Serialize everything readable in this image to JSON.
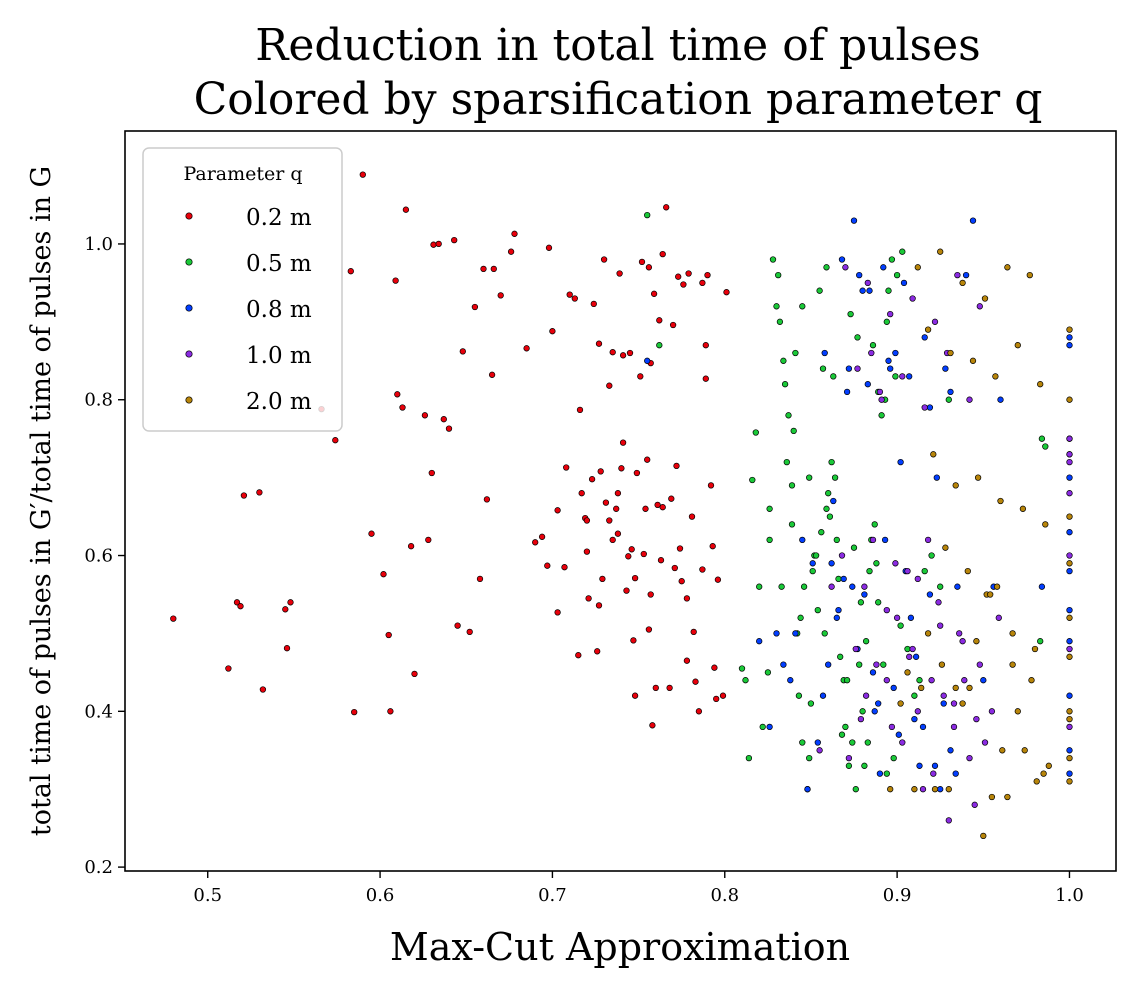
{
  "chart_data": {
    "type": "scatter",
    "title_line1": "Reduction in total time of pulses",
    "title_line2": "Colored by sparsification parameter q",
    "xlabel": "Max-Cut Approximation",
    "ylabel": "total time of pulses in G′/total time of pulses in G",
    "xlim": [
      0.452,
      1.027
    ],
    "ylim": [
      0.195,
      1.145
    ],
    "xticks": [
      0.5,
      0.6,
      0.7,
      0.8,
      0.9,
      1.0
    ],
    "xtick_labels": [
      "0.5",
      "0.6",
      "0.7",
      "0.8",
      "0.9",
      "1.0"
    ],
    "yticks": [
      0.2,
      0.4,
      0.6,
      0.8,
      1.0
    ],
    "ytick_labels": [
      "0.2",
      "0.4",
      "0.6",
      "0.8",
      "1.0"
    ],
    "legend": {
      "title": "Parameter q",
      "placement": "upper-left"
    },
    "series": [
      {
        "name": "0.2 m",
        "color": "#e8000b",
        "x": [
          0.48,
          0.512,
          0.517,
          0.519,
          0.521,
          0.53,
          0.532,
          0.545,
          0.546,
          0.548,
          0.566,
          0.574,
          0.583,
          0.585,
          0.59,
          0.595,
          0.602,
          0.605,
          0.606,
          0.609,
          0.61,
          0.613,
          0.615,
          0.618,
          0.62,
          0.626,
          0.628,
          0.63,
          0.631,
          0.634,
          0.637,
          0.64,
          0.643,
          0.645,
          0.648,
          0.652,
          0.655,
          0.658,
          0.66,
          0.662,
          0.665,
          0.666,
          0.67,
          0.676,
          0.678,
          0.685,
          0.69,
          0.694,
          0.697,
          0.7,
          0.703,
          0.707,
          0.708,
          0.71,
          0.715,
          0.716,
          0.719,
          0.72,
          0.721,
          0.723,
          0.724,
          0.726,
          0.727,
          0.729,
          0.73,
          0.731,
          0.733,
          0.735,
          0.737,
          0.738,
          0.739,
          0.74,
          0.741,
          0.743,
          0.744,
          0.746,
          0.747,
          0.748,
          0.749,
          0.751,
          0.752,
          0.753,
          0.755,
          0.756,
          0.757,
          0.758,
          0.759,
          0.761,
          0.763,
          0.764,
          0.766,
          0.768,
          0.77,
          0.771,
          0.773,
          0.774,
          0.776,
          0.778,
          0.779,
          0.781,
          0.783,
          0.785,
          0.787,
          0.789,
          0.79,
          0.792,
          0.794,
          0.796,
          0.799,
          0.801,
          0.728,
          0.741,
          0.757,
          0.769,
          0.787,
          0.795,
          0.735,
          0.748,
          0.764,
          0.782,
          0.717,
          0.733,
          0.754,
          0.772,
          0.703,
          0.72,
          0.738,
          0.756,
          0.775,
          0.793,
          0.76,
          0.778,
          0.745,
          0.713,
          0.698,
          0.727,
          0.762,
          0.789
        ],
        "y": [
          0.519,
          0.455,
          0.54,
          0.535,
          0.677,
          0.681,
          0.428,
          0.531,
          0.481,
          0.54,
          0.788,
          0.748,
          0.965,
          0.399,
          1.089,
          0.628,
          0.576,
          0.498,
          0.4,
          0.953,
          0.807,
          0.79,
          1.044,
          0.612,
          0.448,
          0.78,
          0.62,
          0.706,
          0.999,
          1.0,
          0.775,
          0.763,
          1.005,
          0.51,
          0.862,
          0.502,
          0.919,
          0.57,
          0.968,
          0.672,
          0.832,
          0.968,
          0.934,
          0.99,
          1.013,
          0.866,
          0.617,
          0.624,
          0.587,
          0.888,
          0.658,
          0.585,
          0.713,
          0.935,
          0.472,
          0.787,
          0.648,
          0.605,
          0.545,
          0.698,
          0.923,
          0.477,
          0.536,
          0.57,
          0.98,
          0.668,
          0.818,
          0.861,
          0.66,
          0.628,
          0.962,
          0.712,
          0.857,
          0.555,
          0.599,
          0.608,
          0.491,
          0.42,
          0.706,
          0.83,
          0.977,
          0.602,
          0.723,
          0.97,
          0.847,
          0.382,
          0.936,
          0.665,
          0.594,
          0.987,
          1.047,
          0.43,
          0.896,
          0.584,
          0.958,
          0.609,
          0.948,
          0.545,
          0.962,
          0.65,
          0.438,
          0.4,
          0.95,
          0.87,
          0.96,
          0.69,
          0.456,
          0.569,
          0.42,
          0.938,
          0.708,
          0.745,
          0.55,
          0.673,
          0.582,
          0.416,
          0.62,
          0.571,
          0.662,
          0.502,
          0.68,
          0.645,
          0.66,
          0.715,
          0.527,
          0.645,
          0.68,
          0.505,
          0.567,
          0.612,
          0.43,
          0.465,
          0.86,
          0.93,
          0.995,
          0.872,
          0.902,
          0.827
        ]
      },
      {
        "name": "0.5 m",
        "color": "#1ac938",
        "x": [
          0.755,
          0.762,
          0.81,
          0.812,
          0.814,
          0.816,
          0.818,
          0.82,
          0.822,
          0.825,
          0.826,
          0.828,
          0.83,
          0.832,
          0.834,
          0.835,
          0.837,
          0.839,
          0.84,
          0.842,
          0.843,
          0.845,
          0.846,
          0.848,
          0.849,
          0.851,
          0.852,
          0.854,
          0.856,
          0.857,
          0.859,
          0.86,
          0.862,
          0.864,
          0.865,
          0.867,
          0.869,
          0.87,
          0.872,
          0.874,
          0.876,
          0.878,
          0.88,
          0.882,
          0.884,
          0.885,
          0.887,
          0.889,
          0.891,
          0.893,
          0.895,
          0.897,
          0.9,
          0.903,
          0.906,
          0.91,
          0.913,
          0.916,
          0.92,
          0.925,
          0.93,
          0.983,
          0.984,
          0.986,
          0.833,
          0.844,
          0.858,
          0.871,
          0.883,
          0.898,
          0.826,
          0.839,
          0.853,
          0.866,
          0.879,
          0.892,
          0.836,
          0.849,
          0.861,
          0.875,
          0.888,
          0.902,
          0.831,
          0.845,
          0.859,
          0.873,
          0.886,
          0.899,
          0.85,
          0.868,
          0.881,
          0.894,
          0.855,
          0.877,
          0.894,
          0.841,
          0.863,
          0.889
        ],
        "y": [
          1.037,
          0.87,
          0.455,
          0.44,
          0.34,
          0.697,
          0.758,
          0.56,
          0.38,
          0.45,
          0.62,
          0.98,
          0.92,
          0.9,
          0.85,
          0.82,
          0.78,
          0.69,
          0.76,
          0.5,
          0.42,
          0.36,
          0.56,
          0.3,
          0.34,
          0.58,
          0.6,
          0.53,
          0.63,
          0.84,
          0.66,
          0.68,
          0.72,
          0.7,
          0.62,
          0.47,
          0.44,
          0.38,
          0.33,
          0.36,
          0.3,
          0.46,
          0.4,
          0.49,
          0.58,
          0.62,
          0.64,
          0.54,
          0.78,
          0.8,
          0.94,
          0.98,
          0.96,
          0.99,
          0.48,
          0.42,
          0.44,
          0.58,
          0.6,
          0.56,
          0.8,
          0.49,
          0.75,
          0.74,
          0.56,
          0.52,
          0.5,
          0.44,
          0.36,
          0.34,
          0.66,
          0.64,
          0.6,
          0.57,
          0.54,
          0.46,
          0.72,
          0.7,
          0.65,
          0.61,
          0.59,
          0.51,
          0.96,
          0.92,
          0.97,
          0.91,
          0.87,
          0.83,
          0.41,
          0.37,
          0.33,
          0.32,
          0.94,
          0.88,
          0.9,
          0.86,
          0.83,
          0.81
        ]
      },
      {
        "name": "0.8 m",
        "color": "#023eff",
        "x": [
          0.755,
          0.82,
          0.826,
          0.83,
          0.834,
          0.838,
          0.841,
          0.845,
          0.848,
          0.851,
          0.854,
          0.857,
          0.86,
          0.863,
          0.866,
          0.869,
          0.872,
          0.875,
          0.878,
          0.881,
          0.884,
          0.887,
          0.89,
          0.893,
          0.896,
          0.899,
          0.902,
          0.905,
          0.908,
          0.911,
          0.915,
          0.919,
          0.923,
          0.927,
          0.931,
          0.935,
          0.94,
          0.944,
          0.95,
          0.956,
          0.96,
          0.984,
          1.0,
          1.0,
          1.0,
          1.0,
          1.0,
          1.0,
          1.0,
          1.0,
          1.0,
          1.0,
          1.0,
          1.0,
          0.862,
          0.874,
          0.886,
          0.898,
          0.91,
          0.922,
          0.934,
          0.868,
          0.88,
          0.892,
          0.904,
          0.916,
          0.928,
          0.858,
          0.871,
          0.883,
          0.895,
          0.907,
          0.919,
          0.931,
          0.865,
          0.877,
          0.889,
          0.901,
          0.913,
          0.925
        ],
        "y": [
          0.85,
          0.49,
          0.38,
          0.5,
          0.46,
          0.44,
          0.5,
          0.62,
          0.3,
          0.59,
          0.36,
          0.42,
          0.46,
          0.67,
          0.53,
          0.57,
          0.84,
          1.03,
          0.96,
          0.55,
          0.94,
          0.4,
          0.32,
          0.62,
          0.84,
          0.86,
          0.72,
          0.58,
          0.52,
          0.47,
          0.38,
          0.55,
          0.7,
          0.41,
          0.35,
          0.56,
          0.96,
          1.03,
          0.44,
          0.56,
          0.8,
          0.56,
          0.32,
          0.35,
          0.42,
          0.49,
          0.53,
          0.58,
          0.63,
          0.7,
          0.73,
          0.75,
          0.87,
          0.88,
          0.59,
          0.56,
          0.45,
          0.43,
          0.39,
          0.33,
          0.32,
          0.98,
          0.94,
          0.97,
          0.95,
          0.88,
          0.84,
          0.86,
          0.81,
          0.82,
          0.85,
          0.83,
          0.79,
          0.81,
          0.52,
          0.48,
          0.41,
          0.37,
          0.33,
          0.3
        ]
      },
      {
        "name": "1.0 m",
        "color": "#8b2be2",
        "x": [
          0.855,
          0.862,
          0.868,
          0.872,
          0.876,
          0.879,
          0.882,
          0.885,
          0.888,
          0.891,
          0.894,
          0.897,
          0.9,
          0.903,
          0.906,
          0.909,
          0.912,
          0.915,
          0.918,
          0.921,
          0.924,
          0.927,
          0.93,
          0.933,
          0.936,
          0.939,
          0.942,
          0.945,
          0.948,
          0.951,
          0.955,
          0.959,
          1.0,
          1.0,
          1.0,
          1.0,
          1.0,
          1.0,
          1.0,
          0.87,
          0.883,
          0.896,
          0.909,
          0.922,
          0.935,
          0.948,
          0.877,
          0.89,
          0.903,
          0.916,
          0.929,
          0.942,
          0.881,
          0.894,
          0.907,
          0.92,
          0.933,
          0.946,
          0.886,
          0.899,
          0.912,
          0.925,
          0.938
        ],
        "y": [
          0.35,
          0.56,
          0.6,
          0.34,
          0.48,
          0.39,
          0.42,
          0.86,
          0.46,
          0.8,
          0.44,
          0.38,
          0.52,
          0.36,
          0.58,
          0.48,
          0.4,
          0.3,
          0.62,
          0.32,
          0.54,
          0.42,
          0.26,
          0.38,
          0.5,
          0.44,
          0.34,
          0.28,
          0.46,
          0.36,
          0.4,
          0.52,
          0.38,
          0.48,
          0.6,
          0.68,
          0.72,
          0.73,
          0.75,
          0.97,
          0.95,
          0.91,
          0.93,
          0.9,
          0.96,
          0.92,
          0.84,
          0.81,
          0.83,
          0.79,
          0.86,
          0.8,
          0.56,
          0.53,
          0.47,
          0.44,
          0.41,
          0.39,
          0.62,
          0.59,
          0.57,
          0.51,
          0.49
        ]
      },
      {
        "name": "2.0 m",
        "color": "#b8850a",
        "x": [
          0.896,
          0.902,
          0.906,
          0.91,
          0.914,
          0.918,
          0.922,
          0.926,
          0.93,
          0.934,
          0.938,
          0.942,
          0.946,
          0.95,
          0.952,
          0.955,
          0.958,
          0.961,
          0.964,
          0.967,
          0.97,
          0.974,
          0.978,
          0.981,
          0.985,
          0.988,
          1.0,
          1.0,
          1.0,
          1.0,
          1.0,
          1.0,
          1.0,
          1.0,
          1.0,
          1.0,
          0.912,
          0.925,
          0.938,
          0.951,
          0.964,
          0.977,
          0.918,
          0.931,
          0.944,
          0.957,
          0.97,
          0.983,
          0.921,
          0.934,
          0.947,
          0.96,
          0.973,
          0.986,
          0.928,
          0.941,
          0.954,
          0.967,
          0.98
        ],
        "y": [
          0.3,
          0.41,
          0.45,
          0.3,
          0.43,
          0.5,
          0.3,
          0.46,
          0.3,
          0.43,
          0.41,
          0.43,
          0.49,
          0.24,
          0.55,
          0.29,
          0.56,
          0.35,
          0.29,
          0.46,
          0.4,
          0.35,
          0.44,
          0.31,
          0.32,
          0.33,
          0.8,
          0.89,
          0.65,
          0.59,
          0.52,
          0.47,
          0.4,
          0.31,
          0.34,
          0.39,
          0.97,
          0.99,
          0.95,
          0.93,
          0.97,
          0.96,
          0.89,
          0.86,
          0.85,
          0.83,
          0.87,
          0.82,
          0.73,
          0.69,
          0.7,
          0.67,
          0.66,
          0.64,
          0.61,
          0.58,
          0.55,
          0.5,
          0.48
        ]
      }
    ]
  }
}
